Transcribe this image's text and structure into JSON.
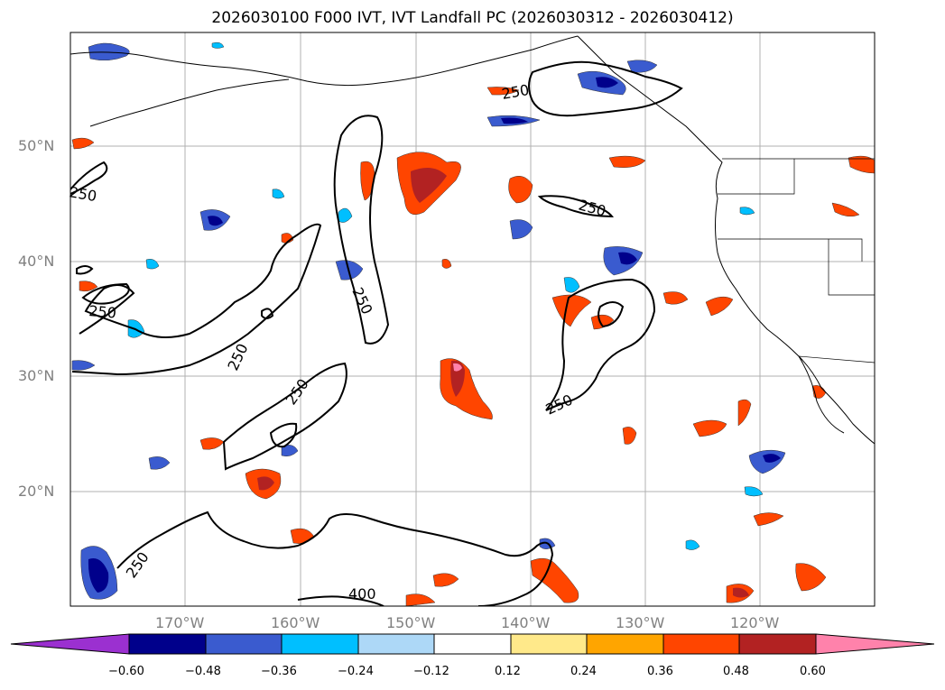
{
  "title": "2026030100 F000 IVT, IVT Landfall PC (2026030312 - 2026030412)",
  "lat_labels": [
    "50°N",
    "40°N",
    "30°N",
    "20°N"
  ],
  "lon_labels": [
    "170°W",
    "160°W",
    "150°W",
    "140°W",
    "130°W",
    "120°W"
  ],
  "contour_labels": [
    "250",
    "250",
    "250",
    "250",
    "250",
    "250",
    "250",
    "250",
    "250",
    "400"
  ],
  "colorbar": {
    "ticks": [
      "−0.60",
      "−0.48",
      "−0.36",
      "−0.24",
      "−0.12",
      "0.12",
      "0.24",
      "0.36",
      "0.48",
      "0.60"
    ],
    "colors": {
      "under": "#9b30d0",
      "c1": "#00008b",
      "c2": "#3a5bcf",
      "c3": "#00bfff",
      "c4": "#add8f7",
      "c5": "#ffffff",
      "c6": "#ffe98a",
      "c7": "#ffa500",
      "c8": "#ff4500",
      "c9": "#b22222",
      "over": "#ff82ab"
    }
  }
}
